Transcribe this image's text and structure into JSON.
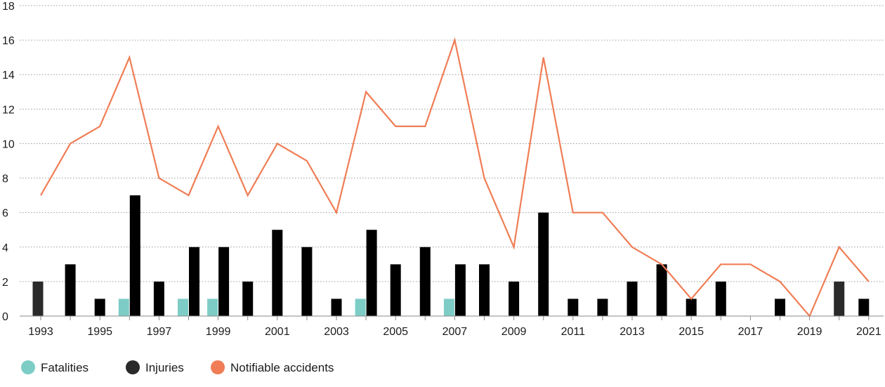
{
  "chart_data": {
    "type": "bar",
    "title": "",
    "xlabel": "",
    "ylabel": "",
    "ylim": [
      0,
      18
    ],
    "yticks": [
      0,
      2,
      4,
      6,
      8,
      10,
      12,
      14,
      16,
      18
    ],
    "grid": "horizontal dotted",
    "legend_position": "bottom-left",
    "categories": [
      "1993",
      "1994",
      "1995",
      "1996",
      "1997",
      "1998",
      "1999",
      "2000",
      "2001",
      "2002",
      "2003",
      "2004",
      "2005",
      "2006",
      "2007",
      "2008",
      "2009",
      "2010",
      "2011",
      "2012",
      "2013",
      "2014",
      "2015",
      "2016",
      "2017",
      "2018",
      "2019",
      "2020",
      "2021"
    ],
    "xtick_labels": [
      "1993",
      "1995",
      "1997",
      "1999",
      "2001",
      "2003",
      "2005",
      "2007",
      "2009",
      "2011",
      "2013",
      "2015",
      "2017",
      "2019",
      "2021"
    ],
    "series": [
      {
        "name": "Fatalities",
        "type": "bar",
        "color": "#7dcdc6",
        "values": [
          0,
          0,
          0,
          1,
          0,
          1,
          1,
          0,
          0,
          0,
          0,
          1,
          0,
          0,
          1,
          0,
          0,
          0,
          0,
          0,
          0,
          0,
          0,
          0,
          0,
          0,
          0,
          0,
          0
        ]
      },
      {
        "name": "Injuries",
        "type": "bar",
        "color": "#000000",
        "values": [
          2,
          3,
          1,
          7,
          2,
          4,
          4,
          2,
          5,
          4,
          1,
          5,
          3,
          4,
          3,
          3,
          2,
          6,
          1,
          1,
          2,
          3,
          1,
          2,
          0,
          1,
          0,
          2,
          1
        ]
      },
      {
        "name": "Notifiable accidents",
        "type": "line",
        "color": "#f07d55",
        "values": [
          7,
          10,
          11,
          15,
          8,
          7,
          11,
          7,
          10,
          9,
          6,
          13,
          11,
          11,
          16,
          8,
          4,
          15,
          6,
          6,
          4,
          3,
          1,
          3,
          3,
          2,
          0,
          4,
          2
        ]
      }
    ]
  },
  "legend": [
    {
      "label": "Fatalities",
      "color": "#7dcdc6"
    },
    {
      "label": "Injuries",
      "color": "#2a2a2a"
    },
    {
      "label": "Notifiable accidents",
      "color": "#f07d55"
    }
  ]
}
